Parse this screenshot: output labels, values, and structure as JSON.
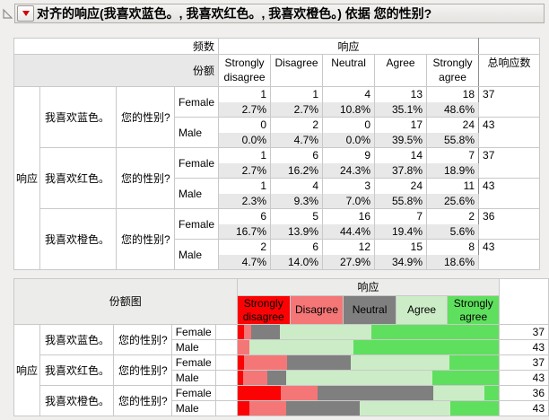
{
  "title": {
    "text": "对齐的响应(我喜欢蓝色。, 我喜欢红色。, 我喜欢橙色。) 依据 您的性别?"
  },
  "freq_table": {
    "stat_labels": {
      "row1": "频数",
      "row2": "份额"
    },
    "response_span_label": "响应",
    "total_label": "总响应数",
    "response_levels": [
      "Strongly disagree",
      "Disagree",
      "Neutral",
      "Agree",
      "Strongly agree"
    ],
    "row_group_label": "响应",
    "blocks": [
      {
        "question": "我喜欢蓝色。",
        "gender_question": "您的性别?",
        "rows": [
          {
            "gender": "Female",
            "counts": [
              "1",
              "1",
              "4",
              "13",
              "18"
            ],
            "pcts": [
              "2.7%",
              "2.7%",
              "10.8%",
              "35.1%",
              "48.6%"
            ],
            "total": "37"
          },
          {
            "gender": "Male",
            "counts": [
              "0",
              "2",
              "0",
              "17",
              "24"
            ],
            "pcts": [
              "0.0%",
              "4.7%",
              "0.0%",
              "39.5%",
              "55.8%"
            ],
            "total": "43"
          }
        ]
      },
      {
        "question": "我喜欢红色。",
        "gender_question": "您的性别?",
        "rows": [
          {
            "gender": "Female",
            "counts": [
              "1",
              "6",
              "9",
              "14",
              "7"
            ],
            "pcts": [
              "2.7%",
              "16.2%",
              "24.3%",
              "37.8%",
              "18.9%"
            ],
            "total": "37"
          },
          {
            "gender": "Male",
            "counts": [
              "1",
              "4",
              "3",
              "24",
              "11"
            ],
            "pcts": [
              "2.3%",
              "9.3%",
              "7.0%",
              "55.8%",
              "25.6%"
            ],
            "total": "43"
          }
        ]
      },
      {
        "question": "我喜欢橙色。",
        "gender_question": "您的性别?",
        "rows": [
          {
            "gender": "Female",
            "counts": [
              "6",
              "5",
              "16",
              "7",
              "2"
            ],
            "pcts": [
              "16.7%",
              "13.9%",
              "44.4%",
              "19.4%",
              "5.6%"
            ],
            "total": "36"
          },
          {
            "gender": "Male",
            "counts": [
              "2",
              "6",
              "12",
              "15",
              "8"
            ],
            "pcts": [
              "4.7%",
              "14.0%",
              "27.9%",
              "34.9%",
              "18.6%"
            ],
            "total": "43"
          }
        ]
      }
    ]
  },
  "share_chart": {
    "header_label": "份额图",
    "response_span_label": "响应",
    "row_group_label": "响应",
    "legend": [
      {
        "label": "Strongly disagree",
        "color": "#fb0204"
      },
      {
        "label": "Disagree",
        "color": "#f57676"
      },
      {
        "label": "Neutral",
        "color": "#7f7f7f"
      },
      {
        "label": "Agree",
        "color": "#cbecc6"
      },
      {
        "label": "Strongly agree",
        "color": "#5fdf5e"
      }
    ],
    "blocks": [
      {
        "question": "我喜欢蓝色。",
        "gender_question": "您的性别?",
        "rows": [
          {
            "gender": "Female",
            "pcts": [
              2.7,
              2.7,
              10.8,
              35.1,
              48.6
            ],
            "total": "37"
          },
          {
            "gender": "Male",
            "pcts": [
              0.0,
              4.7,
              0.0,
              39.5,
              55.8
            ],
            "total": "43"
          }
        ]
      },
      {
        "question": "我喜欢红色。",
        "gender_question": "您的性别?",
        "rows": [
          {
            "gender": "Female",
            "pcts": [
              2.7,
              16.2,
              24.3,
              37.8,
              18.9
            ],
            "total": "37"
          },
          {
            "gender": "Male",
            "pcts": [
              2.3,
              9.3,
              7.0,
              55.8,
              25.6
            ],
            "total": "43"
          }
        ]
      },
      {
        "question": "我喜欢橙色。",
        "gender_question": "您的性别?",
        "rows": [
          {
            "gender": "Female",
            "pcts": [
              16.7,
              13.9,
              44.4,
              19.4,
              5.6
            ],
            "total": "36"
          },
          {
            "gender": "Male",
            "pcts": [
              4.7,
              14.0,
              27.9,
              34.9,
              18.6
            ],
            "total": "43"
          }
        ]
      }
    ]
  },
  "chart_data": {
    "type": "bar",
    "subtype": "horizontal-stacked-100pct",
    "title": "份额图",
    "legend_position": "top",
    "xlim": [
      0,
      100
    ],
    "categories": [
      "我喜欢蓝色。 Female",
      "我喜欢蓝色。 Male",
      "我喜欢红色。 Female",
      "我喜欢红色。 Male",
      "我喜欢橙色。 Female",
      "我喜欢橙色。 Male"
    ],
    "series": [
      {
        "name": "Strongly disagree",
        "values": [
          2.7,
          0.0,
          2.7,
          2.3,
          16.7,
          4.7
        ]
      },
      {
        "name": "Disagree",
        "values": [
          2.7,
          4.7,
          16.2,
          9.3,
          13.9,
          14.0
        ]
      },
      {
        "name": "Neutral",
        "values": [
          10.8,
          0.0,
          24.3,
          7.0,
          44.4,
          27.9
        ]
      },
      {
        "name": "Agree",
        "values": [
          35.1,
          39.5,
          37.8,
          55.8,
          19.4,
          34.9
        ]
      },
      {
        "name": "Strongly agree",
        "values": [
          48.6,
          55.8,
          18.9,
          25.6,
          5.6,
          18.6
        ]
      }
    ],
    "totals": [
      37,
      43,
      37,
      43,
      36,
      43
    ]
  }
}
